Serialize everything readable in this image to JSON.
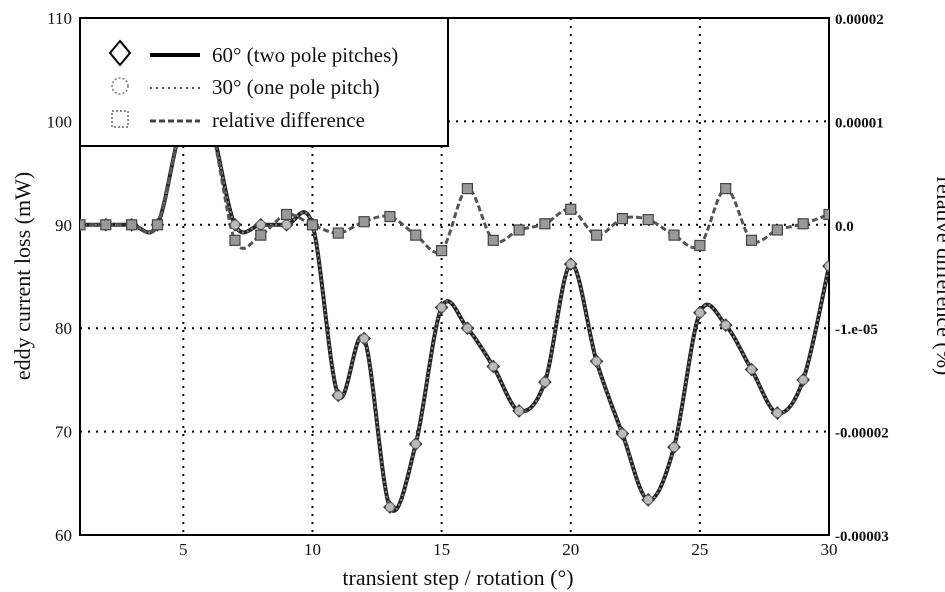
{
  "chart_data": {
    "type": "line",
    "xlabel": "transient step / rotation (°)",
    "ylabel_left": "eddy current loss (mW)",
    "ylabel_right": "relative difference (%)",
    "x_ticks": [
      "5",
      "10",
      "15",
      "20",
      "25",
      "30"
    ],
    "y_left_ticks": [
      "60",
      "70",
      "80",
      "90",
      "100",
      "110"
    ],
    "y_right_ticks": [
      "-0.00003",
      "-0.00002",
      "-1.e-05",
      "0.0",
      "0.00001",
      "0.00002"
    ],
    "xlim": [
      1,
      30
    ],
    "ylim_left": [
      60,
      110
    ],
    "ylim_right": [
      -3e-05,
      2e-05
    ],
    "grid": true,
    "legend_position": "top-left",
    "x": [
      1,
      2,
      3,
      4,
      5,
      6,
      7,
      8,
      9,
      10,
      11,
      12,
      13,
      14,
      15,
      16,
      17,
      18,
      19,
      20,
      21,
      22,
      23,
      24,
      25,
      26,
      27,
      28,
      29,
      30
    ],
    "series": [
      {
        "name": "60° (two pole pitches)",
        "axis": "left",
        "style": "solid",
        "marker": "diamond",
        "values": [
          90,
          90,
          90,
          90,
          100,
          100,
          90,
          90,
          90,
          90,
          73.5,
          79,
          62.7,
          68.8,
          82,
          80,
          76.3,
          72,
          74.8,
          86.2,
          76.8,
          69.8,
          63.4,
          68.5,
          81.5,
          80.3,
          76,
          71.8,
          75,
          86
        ]
      },
      {
        "name": "30° (one pole pitch)",
        "axis": "left",
        "style": "dotted",
        "marker": "circle",
        "values": [
          90,
          90,
          90,
          90,
          100,
          100,
          90,
          90,
          90,
          90,
          73.5,
          79,
          62.7,
          68.8,
          82,
          80,
          76.3,
          72,
          74.8,
          86.2,
          76.8,
          69.8,
          63.4,
          68.5,
          81.5,
          80.3,
          76,
          71.8,
          75,
          86
        ]
      },
      {
        "name": "relative difference",
        "axis": "right",
        "style": "dashed",
        "marker": "square",
        "values": [
          0.0,
          0.0,
          0.0,
          0.0,
          1e-05,
          1e-05,
          -1.5e-06,
          -1e-06,
          1e-06,
          0.0,
          -8e-07,
          3e-07,
          8e-07,
          -1e-06,
          -2.5e-06,
          3.5e-06,
          -1.5e-06,
          -5e-07,
          1e-07,
          1.5e-06,
          -1e-06,
          6e-07,
          5e-07,
          -1e-06,
          -2e-06,
          3.5e-06,
          -1.5e-06,
          -5e-07,
          1e-07,
          1e-06
        ]
      }
    ]
  }
}
